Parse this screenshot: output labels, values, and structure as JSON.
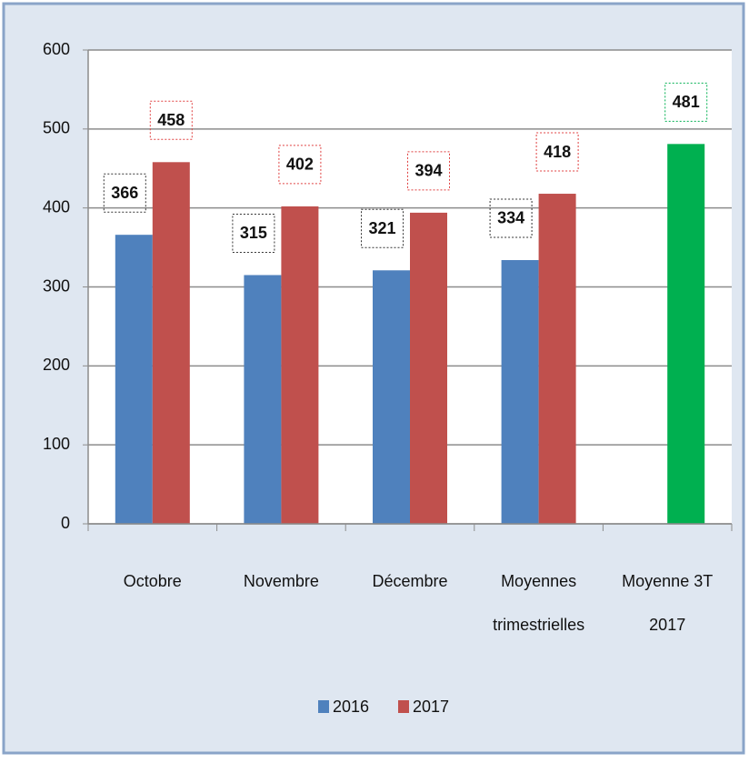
{
  "chart_data": {
    "type": "bar",
    "categories": [
      "Octobre",
      "Novembre",
      "Décembre",
      "Moyennes\ntrimestrielles",
      "Moyenne 3T\n2017"
    ],
    "series": [
      {
        "name": "2016",
        "color": "#4f81bd",
        "values": [
          366,
          315,
          321,
          334,
          null
        ],
        "label_border": "#333333"
      },
      {
        "name": "2017",
        "color": "#c0504d",
        "values": [
          458,
          402,
          394,
          418,
          481
        ],
        "colors": [
          "#c0504d",
          "#c0504d",
          "#c0504d",
          "#c0504d",
          "#00b050"
        ],
        "label_borders": [
          "#e04040",
          "#e04040",
          "#e04040",
          "#e04040",
          "#00b050"
        ]
      }
    ],
    "ylim": [
      0,
      600
    ],
    "yticks": [
      0,
      100,
      200,
      300,
      400,
      500,
      600
    ],
    "grid": true,
    "legend": "bottom"
  }
}
